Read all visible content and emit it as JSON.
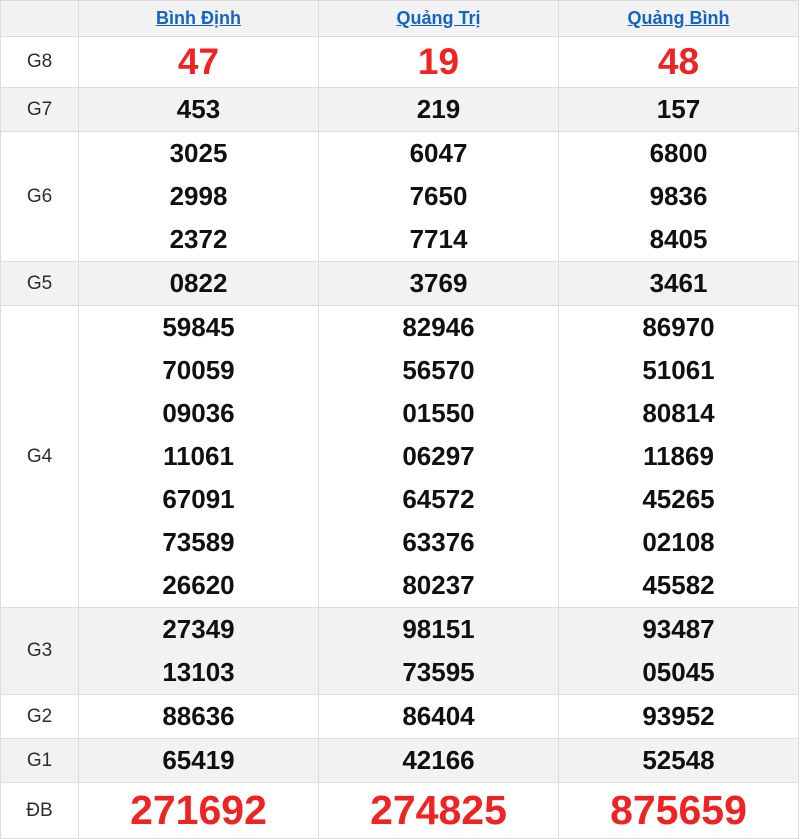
{
  "colors": {
    "link_blue": "#1565c0",
    "accent_red": "#ee2424",
    "row_gray": "#f2f2f2",
    "border": "#dcdcdc"
  },
  "table": {
    "corner_label": "",
    "columns": [
      {
        "label": "Bình Định"
      },
      {
        "label": "Quảng Trị"
      },
      {
        "label": "Quảng Bình"
      }
    ],
    "rows": [
      {
        "label": "G8",
        "emphasis": "red-large",
        "values": [
          [
            "47"
          ],
          [
            "19"
          ],
          [
            "48"
          ]
        ]
      },
      {
        "label": "G7",
        "emphasis": "normal",
        "values": [
          [
            "453"
          ],
          [
            "219"
          ],
          [
            "157"
          ]
        ]
      },
      {
        "label": "G6",
        "emphasis": "normal",
        "values": [
          [
            "3025",
            "2998",
            "2372"
          ],
          [
            "6047",
            "7650",
            "7714"
          ],
          [
            "6800",
            "9836",
            "8405"
          ]
        ]
      },
      {
        "label": "G5",
        "emphasis": "g5",
        "values": [
          [
            "0822"
          ],
          [
            "3769"
          ],
          [
            "3461"
          ]
        ]
      },
      {
        "label": "G4",
        "emphasis": "normal",
        "values": [
          [
            "59845",
            "70059",
            "09036",
            "11061",
            "67091",
            "73589",
            "26620"
          ],
          [
            "82946",
            "56570",
            "01550",
            "06297",
            "64572",
            "63376",
            "80237"
          ],
          [
            "86970",
            "51061",
            "80814",
            "11869",
            "45265",
            "02108",
            "45582"
          ]
        ]
      },
      {
        "label": "G3",
        "emphasis": "normal",
        "values": [
          [
            "27349",
            "13103"
          ],
          [
            "98151",
            "73595"
          ],
          [
            "93487",
            "05045"
          ]
        ]
      },
      {
        "label": "G2",
        "emphasis": "normal",
        "values": [
          [
            "88636"
          ],
          [
            "86404"
          ],
          [
            "93952"
          ]
        ]
      },
      {
        "label": "G1",
        "emphasis": "normal",
        "values": [
          [
            "65419"
          ],
          [
            "42166"
          ],
          [
            "52548"
          ]
        ]
      },
      {
        "label": "ĐB",
        "emphasis": "red-xlarge",
        "values": [
          [
            "271692"
          ],
          [
            "274825"
          ],
          [
            "875659"
          ]
        ]
      }
    ]
  }
}
